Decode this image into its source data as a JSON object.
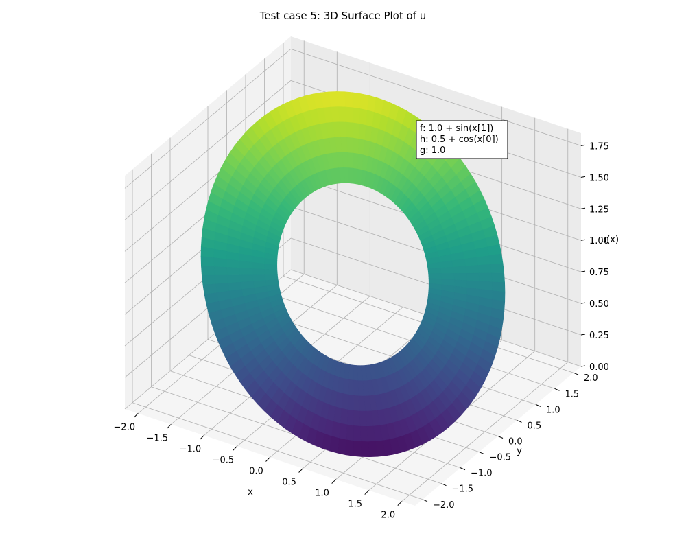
{
  "chart_data": {
    "type": "surface3d",
    "title": "Test case 5: 3D Surface Plot of u",
    "xlabel": "x",
    "ylabel": "y",
    "zlabel": "u(x)",
    "xlim": [
      -2.2,
      2.2
    ],
    "ylim": [
      -2.2,
      2.2
    ],
    "zlim": [
      0,
      1.85
    ],
    "xticks": [
      "−2.0",
      "−1.5",
      "−1.0",
      "−0.5",
      "0.0",
      "0.5",
      "1.0",
      "1.5",
      "2.0"
    ],
    "yticks": [
      "−2.0",
      "−1.5",
      "−1.0",
      "−0.5",
      "0.0",
      "0.5",
      "1.0",
      "1.5",
      "2.0"
    ],
    "zticks": [
      "0.00",
      "0.25",
      "0.50",
      "0.75",
      "1.00",
      "1.25",
      "1.50",
      "1.75"
    ],
    "grid": true,
    "colormap": "viridis",
    "surface": {
      "description_values": "annular ring surface, inner radius 1.0, outer radius 2.0",
      "inner_radius": 1.0,
      "outer_radius": 2.0,
      "z_min": 0.0,
      "z_max": 1.8
    },
    "annotation": {
      "lines": [
        "f: 1.0 + sin(x[1])",
        "h: 0.5 + cos(x[0])",
        "g: 1.0"
      ]
    }
  }
}
